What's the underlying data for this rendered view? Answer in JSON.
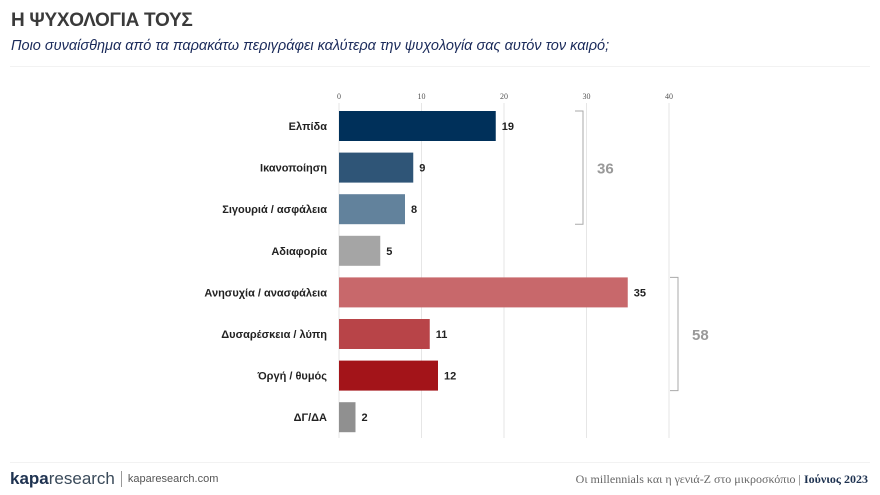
{
  "header": {
    "title": "Η ΨΥΧΟΛΟΓΙΑ ΤΟΥΣ",
    "subtitle": "Ποιο συναίσθημα από τα παρακάτω περιγράφει καλύτερα την ψυχολογία σας αυτόν τον καιρό;"
  },
  "chart_data": {
    "type": "bar",
    "orientation": "horizontal",
    "categories": [
      "Ελπίδα",
      "Ικανοποίηση",
      "Σιγουριά / ασφάλεια",
      "Αδιαφορία",
      "Ανησυχία / ανασφάλεια",
      "Δυσαρέσκεια / λύπη",
      "Όργή / θυμός",
      "ΔΓ/ΔΑ"
    ],
    "values": [
      19,
      9,
      8,
      5,
      35,
      11,
      12,
      2
    ],
    "colors": [
      "#00305a",
      "#2f5577",
      "#62829c",
      "#a5a5a5",
      "#c8686b",
      "#b84448",
      "#a31419",
      "#909090"
    ],
    "xlim": [
      0,
      40
    ],
    "xticks": [
      0,
      10,
      20,
      30,
      40
    ],
    "grid": true,
    "groups": [
      {
        "label": "36",
        "from": 0,
        "to": 2
      },
      {
        "label": "58",
        "from": 4,
        "to": 6
      }
    ]
  },
  "footer": {
    "logo_bold": "kapa",
    "logo_light": "research",
    "site": "kaparesearch.com",
    "study": "Οι millennials και η γενιά-Ζ στο μικροσκόπιο",
    "separator": "|",
    "date": "Ιούνιος 2023"
  }
}
